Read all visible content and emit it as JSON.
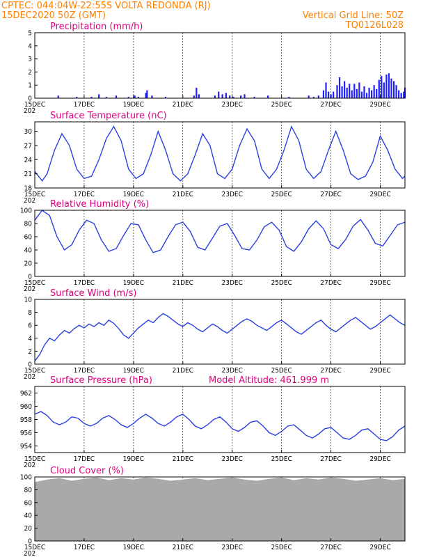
{
  "header": {
    "line1_left": "CPTEC:   044:04W-22:55S   VOLTA REDONDA (RJ)",
    "line2_left": "15DEC2020 50Z (GMT)",
    "line2_right": "Vertical Grid Line: 50Z",
    "line3_right": "TQ0126L028"
  },
  "colors": {
    "line": "#2a3fe0",
    "bar": "#2020ff",
    "cloud": "#a9a9a9",
    "header_text": "#ff7f00",
    "panel_title": "#e0007f"
  },
  "x_axis": {
    "tick_labels": [
      "15DEC",
      "17DEC",
      "19DEC",
      "21DEC",
      "23DEC",
      "25DEC",
      "27DEC",
      "29DEC"
    ],
    "clip_label": "202"
  },
  "chart_data": [
    {
      "type": "bar",
      "title": "Precipitation (mm/h)",
      "xlim": [
        0,
        15
      ],
      "ylim": [
        0,
        5
      ],
      "yticks": [
        "0",
        "1",
        "2",
        "3",
        "4",
        "5"
      ],
      "grid": "vertical",
      "bars": [
        [
          0.95,
          0.2
        ],
        [
          1.7,
          0.1
        ],
        [
          2.3,
          0.1
        ],
        [
          2.6,
          0.3
        ],
        [
          2.9,
          0.1
        ],
        [
          3.3,
          0.2
        ],
        [
          3.8,
          0.1
        ],
        [
          4.05,
          0.2
        ],
        [
          4.2,
          0.1
        ],
        [
          4.5,
          0.4
        ],
        [
          4.55,
          0.6
        ],
        [
          4.75,
          0.2
        ],
        [
          5.3,
          0.1
        ],
        [
          6.45,
          0.2
        ],
        [
          6.55,
          0.8
        ],
        [
          6.65,
          0.3
        ],
        [
          7.3,
          0.2
        ],
        [
          7.45,
          0.5
        ],
        [
          7.6,
          0.3
        ],
        [
          7.75,
          0.4
        ],
        [
          7.9,
          0.2
        ],
        [
          8.05,
          0.1
        ],
        [
          8.35,
          0.2
        ],
        [
          8.5,
          0.3
        ],
        [
          8.9,
          0.1
        ],
        [
          9.45,
          0.2
        ],
        [
          10.3,
          0.1
        ],
        [
          11.1,
          0.2
        ],
        [
          11.3,
          0.1
        ],
        [
          11.5,
          0.2
        ],
        [
          11.7,
          0.6
        ],
        [
          11.8,
          1.2
        ],
        [
          11.9,
          0.5
        ],
        [
          12.0,
          0.3
        ],
        [
          12.1,
          0.5
        ],
        [
          12.25,
          1.0
        ],
        [
          12.35,
          1.6
        ],
        [
          12.45,
          0.9
        ],
        [
          12.55,
          1.3
        ],
        [
          12.65,
          0.8
        ],
        [
          12.75,
          1.1
        ],
        [
          12.85,
          0.6
        ],
        [
          12.95,
          1.1
        ],
        [
          13.05,
          0.7
        ],
        [
          13.15,
          1.2
        ],
        [
          13.25,
          0.5
        ],
        [
          13.35,
          0.9
        ],
        [
          13.45,
          0.4
        ],
        [
          13.55,
          0.8
        ],
        [
          13.65,
          0.6
        ],
        [
          13.75,
          1.0
        ],
        [
          13.85,
          0.7
        ],
        [
          13.95,
          1.4
        ],
        [
          14.05,
          1.7
        ],
        [
          14.15,
          1.2
        ],
        [
          14.25,
          1.8
        ],
        [
          14.35,
          1.9
        ],
        [
          14.45,
          1.5
        ],
        [
          14.55,
          1.3
        ],
        [
          14.65,
          1.0
        ],
        [
          14.75,
          0.6
        ],
        [
          14.85,
          0.4
        ],
        [
          14.95,
          0.5
        ],
        [
          15.0,
          0.8
        ]
      ]
    },
    {
      "type": "line",
      "title": "Surface Temperature (nC)",
      "xlim": [
        0,
        15
      ],
      "ylim": [
        18,
        32
      ],
      "yticks": [
        "18",
        "21",
        "24",
        "27",
        "30"
      ],
      "grid": "vertical",
      "points": [
        [
          0,
          21.5
        ],
        [
          0.3,
          19.5
        ],
        [
          0.5,
          21
        ],
        [
          0.8,
          26
        ],
        [
          1.1,
          29.5
        ],
        [
          1.4,
          27
        ],
        [
          1.7,
          22
        ],
        [
          2.0,
          20
        ],
        [
          2.3,
          20.5
        ],
        [
          2.6,
          24
        ],
        [
          2.9,
          28.5
        ],
        [
          3.2,
          31
        ],
        [
          3.5,
          28
        ],
        [
          3.8,
          22
        ],
        [
          4.1,
          20
        ],
        [
          4.4,
          21
        ],
        [
          4.7,
          25
        ],
        [
          5.0,
          30
        ],
        [
          5.3,
          26
        ],
        [
          5.6,
          21
        ],
        [
          5.9,
          19.5
        ],
        [
          6.2,
          21
        ],
        [
          6.5,
          25
        ],
        [
          6.8,
          29.5
        ],
        [
          7.1,
          27
        ],
        [
          7.4,
          21
        ],
        [
          7.7,
          20
        ],
        [
          8.0,
          22
        ],
        [
          8.3,
          27
        ],
        [
          8.6,
          30.5
        ],
        [
          8.9,
          28
        ],
        [
          9.2,
          22
        ],
        [
          9.5,
          20
        ],
        [
          9.8,
          22
        ],
        [
          10.1,
          26
        ],
        [
          10.4,
          31
        ],
        [
          10.7,
          28
        ],
        [
          11.0,
          22
        ],
        [
          11.3,
          20
        ],
        [
          11.6,
          21.5
        ],
        [
          11.9,
          26
        ],
        [
          12.2,
          30
        ],
        [
          12.5,
          26
        ],
        [
          12.8,
          21
        ],
        [
          13.1,
          19.8
        ],
        [
          13.4,
          20.5
        ],
        [
          13.7,
          23.5
        ],
        [
          14.0,
          29
        ],
        [
          14.3,
          26
        ],
        [
          14.6,
          22
        ],
        [
          14.9,
          20
        ],
        [
          15,
          20.5
        ]
      ]
    },
    {
      "type": "line",
      "title": "Relative Humidity (%)",
      "xlim": [
        0,
        15
      ],
      "ylim": [
        0,
        100
      ],
      "yticks": [
        "0",
        "20",
        "40",
        "60",
        "80",
        "100"
      ],
      "grid": "vertical",
      "points": [
        [
          0,
          85
        ],
        [
          0.3,
          100
        ],
        [
          0.6,
          92
        ],
        [
          0.9,
          60
        ],
        [
          1.2,
          40
        ],
        [
          1.5,
          48
        ],
        [
          1.8,
          70
        ],
        [
          2.1,
          85
        ],
        [
          2.4,
          80
        ],
        [
          2.7,
          55
        ],
        [
          3.0,
          38
        ],
        [
          3.3,
          42
        ],
        [
          3.6,
          62
        ],
        [
          3.9,
          80
        ],
        [
          4.2,
          78
        ],
        [
          4.5,
          55
        ],
        [
          4.8,
          36
        ],
        [
          5.1,
          40
        ],
        [
          5.4,
          60
        ],
        [
          5.7,
          78
        ],
        [
          6.0,
          82
        ],
        [
          6.3,
          68
        ],
        [
          6.6,
          44
        ],
        [
          6.9,
          40
        ],
        [
          7.2,
          58
        ],
        [
          7.5,
          76
        ],
        [
          7.8,
          80
        ],
        [
          8.1,
          62
        ],
        [
          8.4,
          42
        ],
        [
          8.7,
          40
        ],
        [
          9.0,
          55
        ],
        [
          9.3,
          75
        ],
        [
          9.6,
          82
        ],
        [
          9.9,
          70
        ],
        [
          10.2,
          45
        ],
        [
          10.5,
          38
        ],
        [
          10.8,
          52
        ],
        [
          11.1,
          72
        ],
        [
          11.4,
          84
        ],
        [
          11.7,
          72
        ],
        [
          12.0,
          48
        ],
        [
          12.3,
          42
        ],
        [
          12.6,
          56
        ],
        [
          12.9,
          76
        ],
        [
          13.2,
          86
        ],
        [
          13.5,
          70
        ],
        [
          13.8,
          50
        ],
        [
          14.1,
          46
        ],
        [
          14.4,
          62
        ],
        [
          14.7,
          78
        ],
        [
          15,
          82
        ]
      ]
    },
    {
      "type": "line",
      "title": "Surface Wind (m/s)",
      "xlim": [
        0,
        15
      ],
      "ylim": [
        0,
        10
      ],
      "yticks": [
        "0",
        "2",
        "4",
        "6",
        "8",
        "10"
      ],
      "grid": "vertical",
      "points": [
        [
          0,
          0.5
        ],
        [
          0.2,
          1.5
        ],
        [
          0.4,
          3.0
        ],
        [
          0.6,
          4.0
        ],
        [
          0.8,
          3.6
        ],
        [
          1.0,
          4.5
        ],
        [
          1.2,
          5.2
        ],
        [
          1.4,
          4.8
        ],
        [
          1.6,
          5.5
        ],
        [
          1.8,
          6.0
        ],
        [
          2.0,
          5.6
        ],
        [
          2.2,
          6.2
        ],
        [
          2.4,
          5.8
        ],
        [
          2.6,
          6.4
        ],
        [
          2.8,
          6.0
        ],
        [
          3.0,
          6.8
        ],
        [
          3.2,
          6.3
        ],
        [
          3.4,
          5.5
        ],
        [
          3.6,
          4.5
        ],
        [
          3.8,
          4.0
        ],
        [
          4.0,
          4.8
        ],
        [
          4.2,
          5.6
        ],
        [
          4.4,
          6.2
        ],
        [
          4.6,
          6.8
        ],
        [
          4.8,
          6.4
        ],
        [
          5.0,
          7.2
        ],
        [
          5.2,
          7.8
        ],
        [
          5.4,
          7.4
        ],
        [
          5.6,
          6.8
        ],
        [
          5.8,
          6.2
        ],
        [
          6.0,
          5.8
        ],
        [
          6.2,
          6.4
        ],
        [
          6.4,
          6.0
        ],
        [
          6.6,
          5.4
        ],
        [
          6.8,
          5.0
        ],
        [
          7.0,
          5.6
        ],
        [
          7.2,
          6.2
        ],
        [
          7.4,
          5.8
        ],
        [
          7.6,
          5.2
        ],
        [
          7.8,
          4.8
        ],
        [
          8.0,
          5.4
        ],
        [
          8.2,
          6.0
        ],
        [
          8.4,
          6.6
        ],
        [
          8.6,
          7.0
        ],
        [
          8.8,
          6.6
        ],
        [
          9.0,
          6.0
        ],
        [
          9.2,
          5.6
        ],
        [
          9.4,
          5.2
        ],
        [
          9.6,
          5.8
        ],
        [
          9.8,
          6.4
        ],
        [
          10.0,
          6.8
        ],
        [
          10.2,
          6.2
        ],
        [
          10.4,
          5.6
        ],
        [
          10.6,
          5.0
        ],
        [
          10.8,
          4.6
        ],
        [
          11.0,
          5.2
        ],
        [
          11.2,
          5.8
        ],
        [
          11.4,
          6.4
        ],
        [
          11.6,
          6.8
        ],
        [
          11.8,
          6.0
        ],
        [
          12.0,
          5.4
        ],
        [
          12.2,
          5.0
        ],
        [
          12.4,
          5.6
        ],
        [
          12.6,
          6.2
        ],
        [
          12.8,
          6.8
        ],
        [
          13.0,
          7.2
        ],
        [
          13.2,
          6.6
        ],
        [
          13.4,
          6.0
        ],
        [
          13.6,
          5.4
        ],
        [
          13.8,
          5.8
        ],
        [
          14.0,
          6.4
        ],
        [
          14.2,
          7.0
        ],
        [
          14.4,
          7.6
        ],
        [
          14.6,
          7.0
        ],
        [
          14.8,
          6.4
        ],
        [
          15,
          6.0
        ]
      ]
    },
    {
      "type": "line",
      "title": "Surface Pressure (hPa)",
      "subtitle": "Model Altitude: 461.999 m",
      "xlim": [
        0,
        15
      ],
      "ylim": [
        953,
        963
      ],
      "yticks": [
        "954",
        "956",
        "958",
        "960",
        "962"
      ],
      "grid": "vertical",
      "points": [
        [
          0,
          958.8
        ],
        [
          0.25,
          959.2
        ],
        [
          0.5,
          958.6
        ],
        [
          0.75,
          957.6
        ],
        [
          1.0,
          957.2
        ],
        [
          1.25,
          957.6
        ],
        [
          1.5,
          958.4
        ],
        [
          1.75,
          958.2
        ],
        [
          2.0,
          957.4
        ],
        [
          2.25,
          957.0
        ],
        [
          2.5,
          957.4
        ],
        [
          2.75,
          958.2
        ],
        [
          3.0,
          958.6
        ],
        [
          3.25,
          958.0
        ],
        [
          3.5,
          957.2
        ],
        [
          3.75,
          956.8
        ],
        [
          4.0,
          957.4
        ],
        [
          4.25,
          958.2
        ],
        [
          4.5,
          958.8
        ],
        [
          4.75,
          958.2
        ],
        [
          5.0,
          957.4
        ],
        [
          5.25,
          957.0
        ],
        [
          5.5,
          957.6
        ],
        [
          5.75,
          958.4
        ],
        [
          6.0,
          958.8
        ],
        [
          6.25,
          958.0
        ],
        [
          6.5,
          957.0
        ],
        [
          6.75,
          956.6
        ],
        [
          7.0,
          957.2
        ],
        [
          7.25,
          958.0
        ],
        [
          7.5,
          958.4
        ],
        [
          7.75,
          957.6
        ],
        [
          8.0,
          956.6
        ],
        [
          8.25,
          956.2
        ],
        [
          8.5,
          956.8
        ],
        [
          8.75,
          957.6
        ],
        [
          9.0,
          957.8
        ],
        [
          9.25,
          957.0
        ],
        [
          9.5,
          956.0
        ],
        [
          9.75,
          955.6
        ],
        [
          10.0,
          956.2
        ],
        [
          10.25,
          957.0
        ],
        [
          10.5,
          957.2
        ],
        [
          10.75,
          956.4
        ],
        [
          11.0,
          955.6
        ],
        [
          11.25,
          955.2
        ],
        [
          11.5,
          955.8
        ],
        [
          11.75,
          956.6
        ],
        [
          12.0,
          956.8
        ],
        [
          12.25,
          956.0
        ],
        [
          12.5,
          955.2
        ],
        [
          12.75,
          955.0
        ],
        [
          13.0,
          955.6
        ],
        [
          13.25,
          956.4
        ],
        [
          13.5,
          956.6
        ],
        [
          13.75,
          955.8
        ],
        [
          14.0,
          955.0
        ],
        [
          14.25,
          954.8
        ],
        [
          14.5,
          955.4
        ],
        [
          14.75,
          956.4
        ],
        [
          15,
          957.0
        ]
      ]
    },
    {
      "type": "area",
      "title": "Cloud Cover (%)",
      "xlim": [
        0,
        15
      ],
      "ylim": [
        0,
        100
      ],
      "yticks": [
        "0",
        "20",
        "40",
        "60",
        "80",
        "100"
      ],
      "grid": "vertical",
      "points": [
        [
          0,
          92
        ],
        [
          0.5,
          96
        ],
        [
          1.0,
          98
        ],
        [
          1.5,
          94
        ],
        [
          2.0,
          97
        ],
        [
          2.5,
          99
        ],
        [
          3.0,
          95
        ],
        [
          3.5,
          98
        ],
        [
          4.0,
          96
        ],
        [
          4.5,
          99
        ],
        [
          5.0,
          97
        ],
        [
          5.5,
          94
        ],
        [
          6.0,
          96
        ],
        [
          6.5,
          98
        ],
        [
          7.0,
          95
        ],
        [
          7.5,
          97
        ],
        [
          8.0,
          99
        ],
        [
          8.5,
          96
        ],
        [
          9.0,
          94
        ],
        [
          9.5,
          97
        ],
        [
          10.0,
          99
        ],
        [
          10.5,
          95
        ],
        [
          11.0,
          98
        ],
        [
          11.5,
          96
        ],
        [
          12.0,
          99
        ],
        [
          12.5,
          97
        ],
        [
          13.0,
          94
        ],
        [
          13.5,
          96
        ],
        [
          14.0,
          98
        ],
        [
          14.5,
          95
        ],
        [
          15,
          97
        ]
      ]
    }
  ]
}
